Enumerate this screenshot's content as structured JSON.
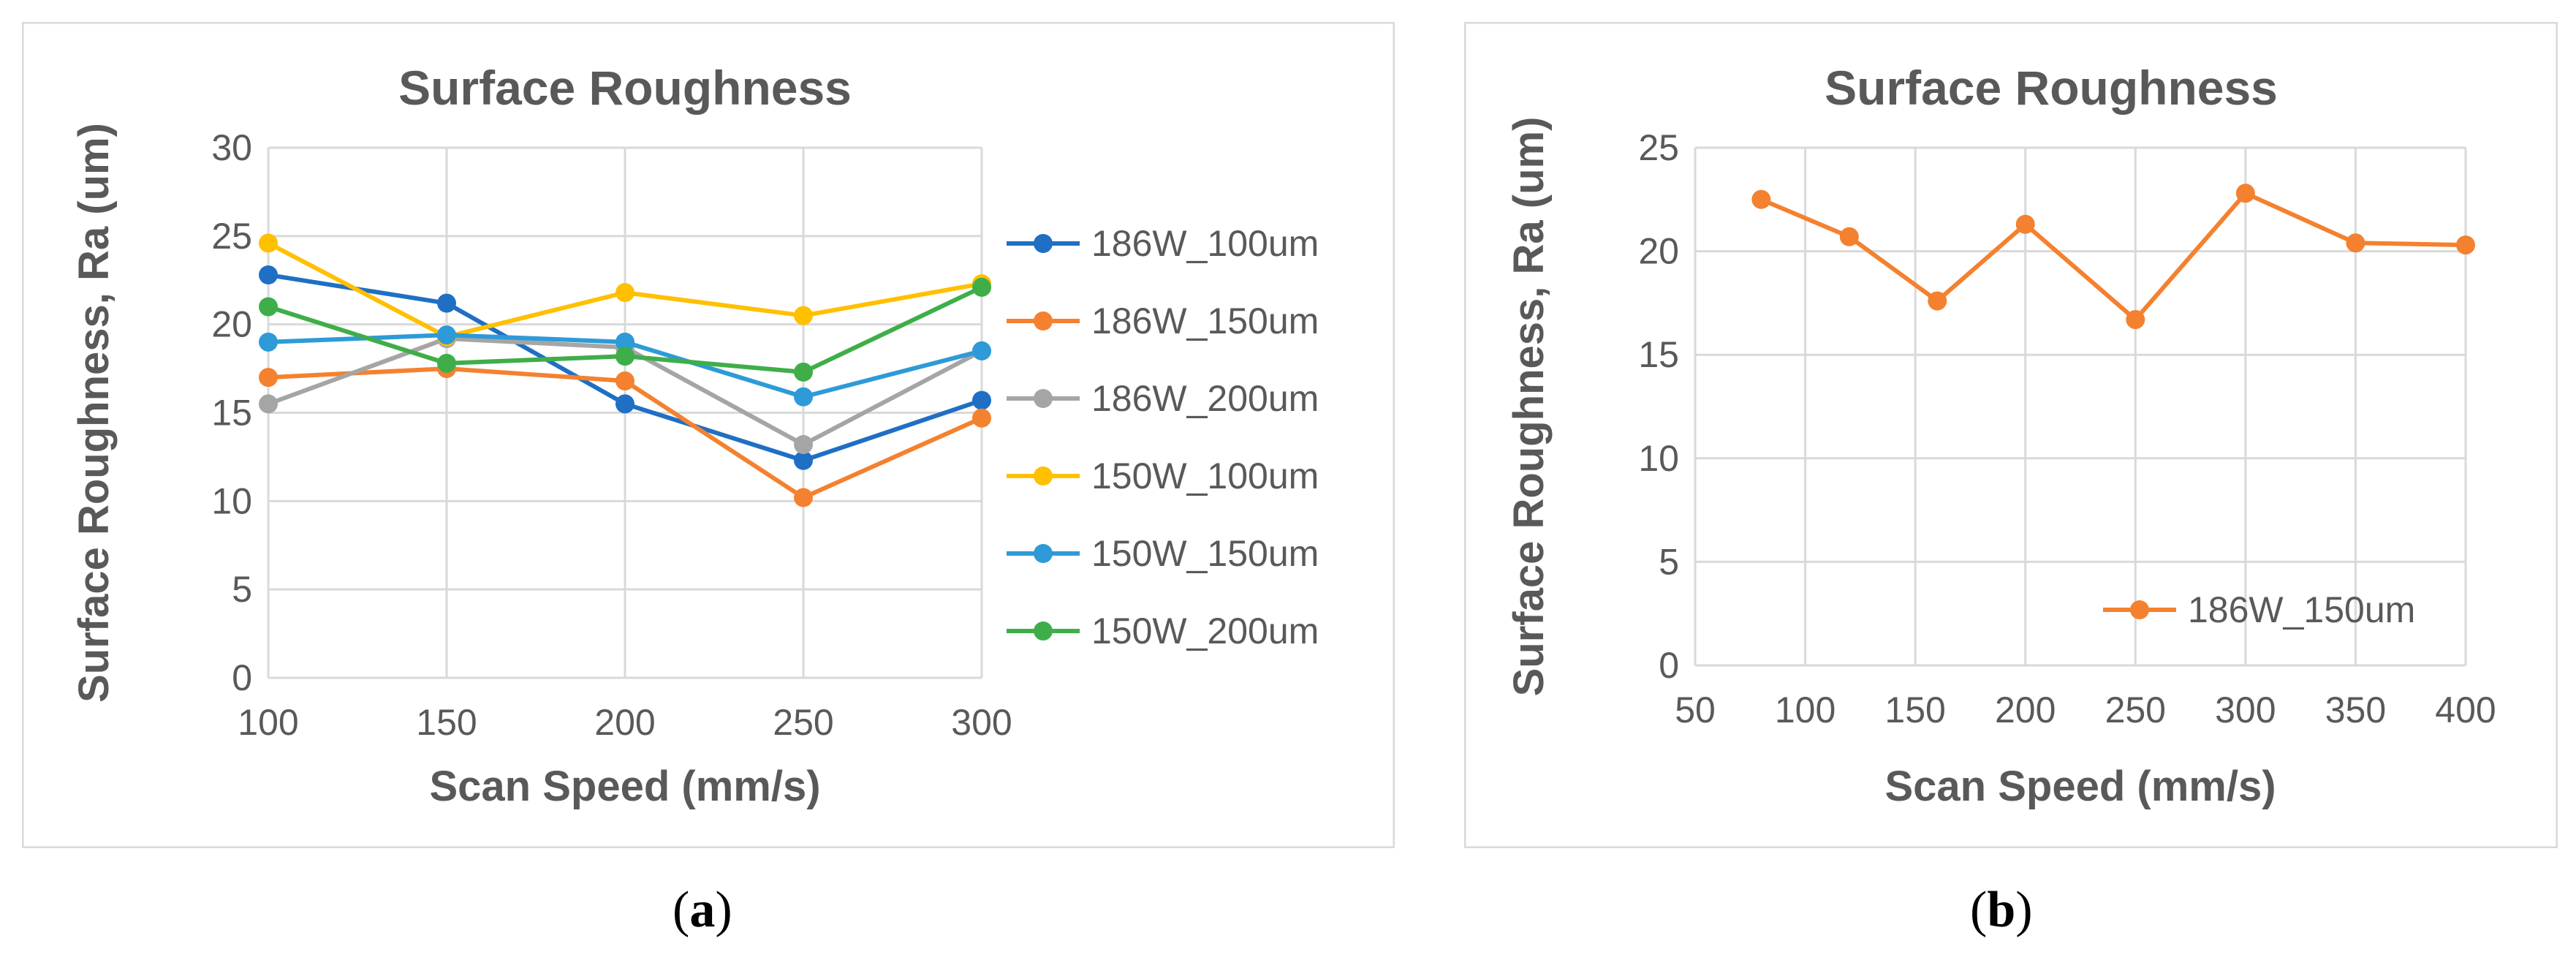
{
  "chart_data": [
    {
      "type": "line",
      "title": "Surface Roughness",
      "xlabel": "Scan Speed (mm/s)",
      "ylabel": "Surface Roughness, Ra (um)",
      "xlim": [
        100,
        300
      ],
      "ylim": [
        0,
        30
      ],
      "xticks": [
        100,
        150,
        200,
        250,
        300
      ],
      "yticks": [
        0,
        5,
        10,
        15,
        20,
        25,
        30
      ],
      "grid": true,
      "legend": "right",
      "x": [
        100,
        150,
        200,
        250,
        300
      ],
      "series": [
        {
          "name": "186W_100um",
          "color": "#1f6fc4",
          "values": [
            22.8,
            21.2,
            15.5,
            12.3,
            15.7
          ]
        },
        {
          "name": "186W_150um",
          "color": "#f4812f",
          "values": [
            17.0,
            17.5,
            16.8,
            10.2,
            14.7
          ]
        },
        {
          "name": "186W_200um",
          "color": "#a5a5a5",
          "values": [
            15.5,
            19.2,
            18.7,
            13.2,
            18.5
          ]
        },
        {
          "name": "150W_100um",
          "color": "#ffc000",
          "values": [
            24.6,
            19.3,
            21.8,
            20.5,
            22.3
          ]
        },
        {
          "name": "150W_150um",
          "color": "#2e9ad8",
          "values": [
            19.0,
            19.4,
            19.0,
            15.9,
            18.5
          ]
        },
        {
          "name": "150W_200um",
          "color": "#3fae49",
          "values": [
            21.0,
            17.8,
            18.2,
            17.3,
            22.1
          ]
        }
      ]
    },
    {
      "type": "line",
      "title": "Surface Roughness",
      "xlabel": "Scan Speed (mm/s)",
      "ylabel": "Surface Roughness, Ra (um)",
      "xlim": [
        50,
        400
      ],
      "ylim": [
        0,
        25
      ],
      "xticks": [
        50,
        100,
        150,
        200,
        250,
        300,
        350,
        400
      ],
      "yticks": [
        0,
        5,
        10,
        15,
        20,
        25
      ],
      "grid": true,
      "legend": "bottom-right",
      "series": [
        {
          "name": "186W_150um",
          "color": "#f4812f",
          "x": [
            80,
            120,
            160,
            200,
            250,
            300,
            350,
            400
          ],
          "values": [
            22.5,
            20.7,
            17.6,
            21.3,
            16.7,
            22.8,
            20.4,
            20.3
          ]
        }
      ]
    }
  ],
  "captions": {
    "a": {
      "open": "(",
      "letter": "a",
      "close": ")"
    },
    "b": {
      "open": "(",
      "letter": "b",
      "close": ")"
    }
  }
}
